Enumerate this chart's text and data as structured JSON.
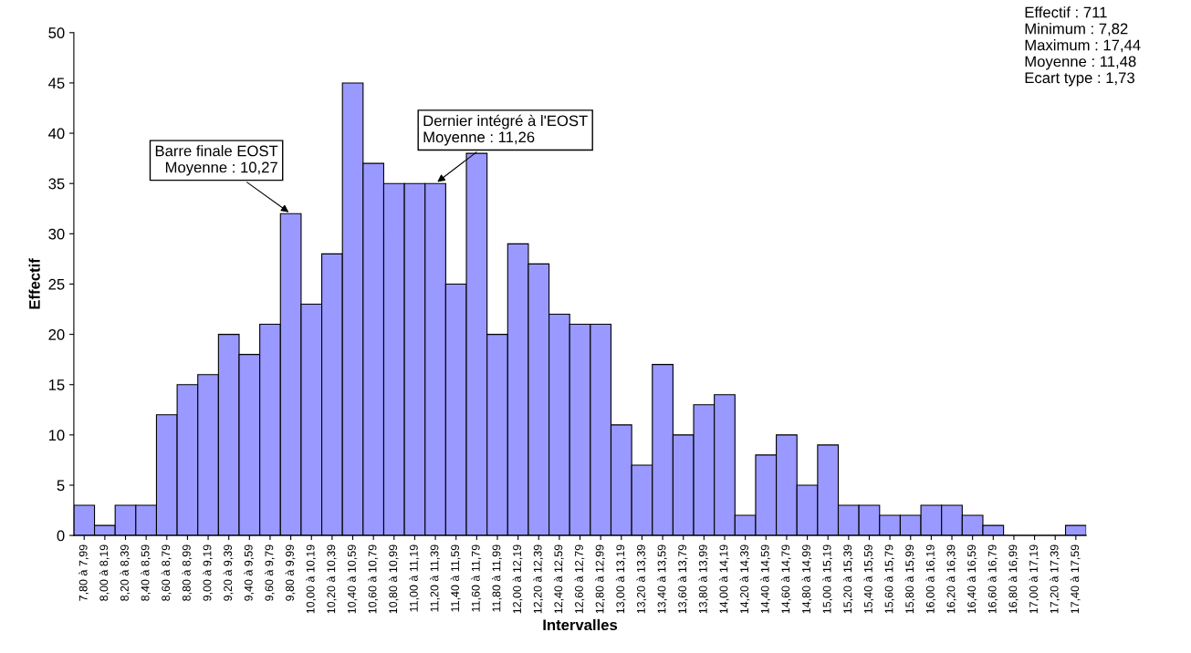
{
  "chart_data": {
    "type": "bar",
    "xlabel": "Intervalles",
    "ylabel": "Effectif",
    "categories": [
      "7,80 à 7,99",
      "8,00 à 8,19",
      "8,20 à 8,39",
      "8,40 à 8,59",
      "8,60 à 8,79",
      "8,80 à 8,99",
      "9,00 à 9,19",
      "9,20 à 9,39",
      "9,40 à 9,59",
      "9,60 à 9,79",
      "9,80 à 9,99",
      "10,00 à 10,19",
      "10,20 à 10,39",
      "10,40 à 10,59",
      "10,60 à 10,79",
      "10,80 à 10,99",
      "11,00 à 11,19",
      "11,20 à 11,39",
      "11,40 à 11,59",
      "11,60 à 11,79",
      "11,80 à 11,99",
      "12,00 à 12,19",
      "12,20 à 12,39",
      "12,40 à 12,59",
      "12,60 à 12,79",
      "12,80 à 12,99",
      "13,00 à 13,19",
      "13,20 à 13,39",
      "13,40 à 13,59",
      "13,60 à 13,79",
      "13,80 à 13,99",
      "14,00 à 14,19",
      "14,20 à 14,39",
      "14,40 à 14,59",
      "14,60 à 14,79",
      "14,80 à 14,99",
      "15,00 à 15,19",
      "15,20 à 15,39",
      "15,40 à 15,59",
      "15,60 à 15,79",
      "15,80 à 15,99",
      "16,00 à 16,19",
      "16,20 à 16,39",
      "16,40 à 16,59",
      "16,60 à 16,79",
      "16,80 à 16,99",
      "17,00 à 17,19",
      "17,20 à 17,39",
      "17,40 à 17,59"
    ],
    "values": [
      3,
      1,
      3,
      3,
      12,
      15,
      16,
      20,
      18,
      21,
      32,
      23,
      28,
      45,
      37,
      35,
      35,
      35,
      25,
      38,
      20,
      29,
      27,
      22,
      21,
      21,
      11,
      7,
      17,
      10,
      13,
      14,
      2,
      8,
      10,
      5,
      9,
      3,
      3,
      2,
      2,
      3,
      3,
      2,
      1,
      0,
      0,
      0,
      1
    ],
    "color": "#9999ff",
    "ylim": [
      0,
      50
    ],
    "yticks": [
      0,
      5,
      10,
      15,
      20,
      25,
      30,
      35,
      40,
      45,
      50
    ],
    "grid": false,
    "legend": false,
    "annotations": [
      {
        "text": "Barre finale EOST\nMoyenne : 10,27",
        "x": "9,80 à 9,99",
        "y": 32
      },
      {
        "text": "Dernier intégré à l'EOST\nMoyenne : 11,26",
        "x": "11,20 à 11,39",
        "y": 35
      },
      "Effectif : 711\nMinimum : 7,82\nMaximum : 17,44\nMoyenne : 11,48\nEcart type : 1,73"
    ]
  }
}
